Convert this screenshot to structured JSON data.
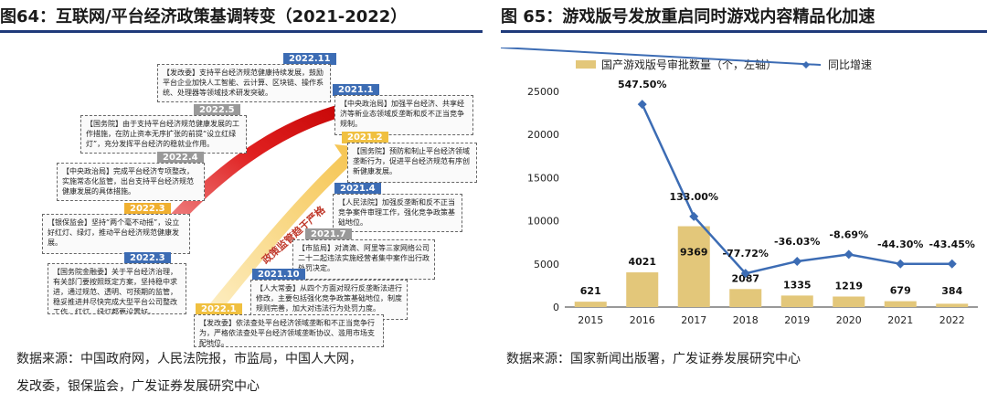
{
  "left": {
    "title": "图64：互联网/平台经济政策基调转变（2021-2022）",
    "source_line1": "数据来源：中国政府网，人民法院报，市监局，中国人大网，",
    "source_line2": "发改委，银保监会，广发证券发展研究中心",
    "arrow_red_label": "政策监管趋于严格",
    "arrow_yellow_label": "政策监管趋于严格",
    "events": [
      {
        "date": "2022.11",
        "text": "【发改委】支持平台经济规范健康持续发展，鼓励平台企业加快人工智能、云计算、区块链、操作系统、处理器等领域技术研发突破。"
      },
      {
        "date": "2022.5",
        "text": "【国务院】由于支持平台经济规范健康发展的工作措施，在防止资本无序扩张的前提“设立红绿灯”，充分发挥平台经济的稳就业作用。"
      },
      {
        "date": "2022.4",
        "text": "【中央政治局】完成平台经济专项整改，实施常态化监管，出台支持平台经济规范健康发展的具体措施。"
      },
      {
        "date": "2022.3",
        "text": "【银保监会】坚持“两个毫不动摇”，设立好红灯、绿灯，推动平台经济规范健康发展。"
      },
      {
        "date": "2022.3",
        "text": "【国务院金融委】关于平台经济治理，有关部门要按照既定方案，坚持稳中求进，通过规范、透明、可预期的监管，稳妥推进并尽快完成大型平台公司整改工作，红灯、绿灯都要设置好。"
      },
      {
        "date": "2021.1",
        "text": "【中央政治局】加强平台经济、共享经济等新业态领域反垄断和反不正当竞争规制。"
      },
      {
        "date": "2021.2",
        "text": "【国务院】预防和制止平台经济领域垄断行为，促进平台经济规范有序创新健康发展。"
      },
      {
        "date": "2021.4",
        "text": "【人民法院】加强反垄断和反不正当竞争案件审理工作，强化竞争政策基础地位。"
      },
      {
        "date": "2021.7",
        "text": "【市监局】对滴滴、阿里等三家网络公司二十二起违法实施经营者集中案作出行政处罚决定。"
      },
      {
        "date": "2021.10",
        "text": "【人大常委】从四个方面对现行反垄断法进行修改，主要包括强化竞争政策基础地位，制度规则完善，加大对违法行为处罚力度。"
      },
      {
        "date": "2022.1",
        "text": "【发改委】依法查处平台经济领域垄断和不正当竞争行为，严格依法查处平台经济领域垄断协议、滥用市场支配地位。"
      }
    ]
  },
  "right": {
    "title": "图 65：游戏版号发放重启同时游戏内容精品化加速",
    "source": "数据来源：国家新闻出版署，广发证券发展研究中心",
    "colors": {
      "bar": "#E3C77A",
      "line": "#3C6CB4",
      "rule": "#1F3A7A"
    }
  },
  "chart_data": {
    "type": "bar",
    "categories": [
      "2015",
      "2016",
      "2017",
      "2018",
      "2019",
      "2020",
      "2021",
      "2022"
    ],
    "series": [
      {
        "name": "国产游戏版号审批数量（个，左轴）",
        "type": "bar",
        "values": [
          621,
          4021,
          9369,
          2087,
          1335,
          1219,
          679,
          384
        ],
        "labels": [
          "621",
          "4021",
          "9369",
          "2087",
          "1335",
          "1219",
          "679",
          "384"
        ]
      },
      {
        "name": "同比增速",
        "type": "line",
        "values": [
          null,
          547.5,
          133.0,
          -77.72,
          -36.03,
          -8.69,
          -44.3,
          -43.45
        ],
        "labels": [
          "",
          "547.50%",
          "133.00%",
          "-77.72%",
          "-36.03%",
          "-8.69%",
          "-44.30%",
          "-43.45%"
        ],
        "plot_on_left_axis": [
          null,
          23500,
          10500,
          3900,
          5300,
          6100,
          5000,
          5000
        ]
      }
    ],
    "ylim": [
      0,
      25000
    ],
    "yticks": [
      "0",
      "5000",
      "10000",
      "15000",
      "20000",
      "25000"
    ],
    "legend_position": "top"
  }
}
